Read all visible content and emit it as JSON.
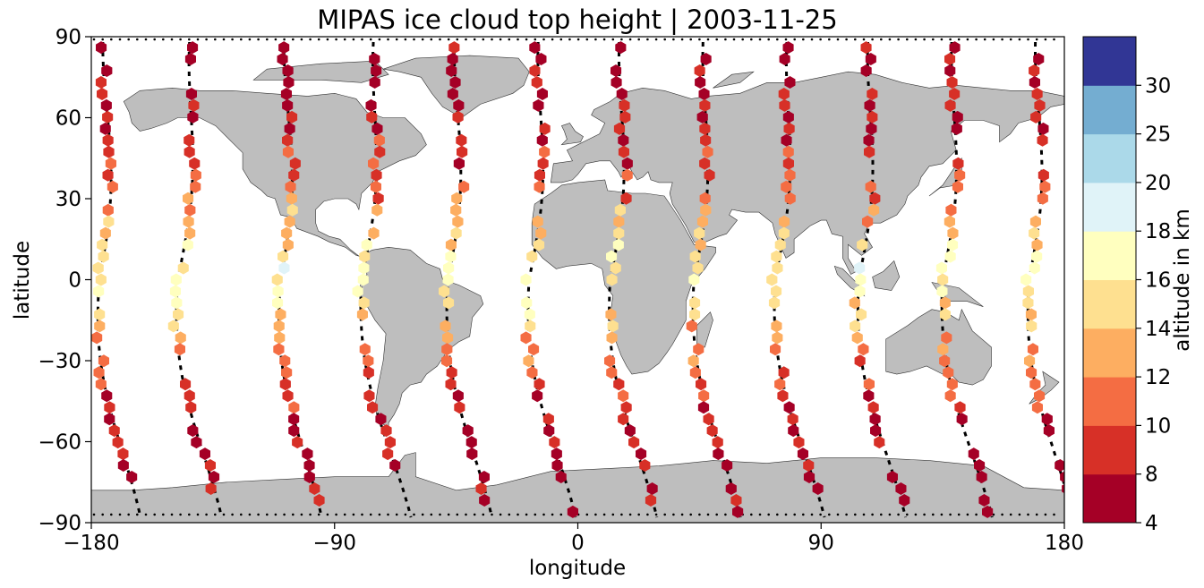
{
  "chart_data": {
    "type": "scatter",
    "title": "MIPAS ice cloud top height | 2003-11-25",
    "xlabel": "longitude",
    "ylabel": "latitude",
    "xlim": [
      -180,
      180
    ],
    "ylim": [
      -90,
      90
    ],
    "xticks": [
      -180,
      -90,
      0,
      90,
      180
    ],
    "yticks": [
      -90,
      -60,
      -30,
      0,
      30,
      60,
      90
    ],
    "xtick_labels": [
      "−180",
      "−90",
      "0",
      "90",
      "180"
    ],
    "ytick_labels": [
      "−90",
      "−60",
      "−30",
      "0",
      "30",
      "60",
      "90"
    ],
    "grid": false,
    "colorbar": {
      "label": "altitude in km",
      "boundaries": [
        4,
        8,
        10,
        12,
        14,
        16,
        18,
        20,
        25,
        30
      ],
      "tick_labels": [
        "4",
        "8",
        "10",
        "12",
        "14",
        "16",
        "18",
        "20",
        "25",
        "30"
      ],
      "colors": [
        "#a50026",
        "#d73027",
        "#f46d43",
        "#fdae61",
        "#fee090",
        "#ffffbf",
        "#e0f3f8",
        "#abd9e9",
        "#74add1",
        "#313695"
      ]
    },
    "land_color": "#bebebe",
    "orbits": [
      {
        "lon_north": -173,
        "lon_south": -165,
        "lon_eq": -177,
        "cloud_lat": [
          86,
          -78
        ]
      },
      {
        "lon_north": -141,
        "lon_south": -135,
        "lon_eq": -148,
        "cloud_lat": [
          86,
          -80
        ]
      },
      {
        "lon_north": -106,
        "lon_south": -98,
        "lon_eq": -110,
        "cloud_lat": [
          86,
          -84
        ]
      },
      {
        "lon_north": -73,
        "lon_south": -65,
        "lon_eq": -80,
        "cloud_lat": [
          86,
          -72
        ]
      },
      {
        "lon_north": -43,
        "lon_south": -35,
        "lon_eq": -48,
        "cloud_lat": [
          86,
          -83
        ]
      },
      {
        "lon_north": -12,
        "lon_south": -4,
        "lon_eq": -18,
        "cloud_lat": [
          86,
          -86
        ]
      },
      {
        "lon_north": 18,
        "lon_south": 26,
        "lon_eq": 12,
        "cloud_lat": [
          86,
          -85
        ]
      },
      {
        "lon_north": 49,
        "lon_south": 57,
        "lon_eq": 43,
        "cloud_lat": [
          86,
          -86
        ]
      },
      {
        "lon_north": 80,
        "lon_south": 88,
        "lon_eq": 73,
        "cloud_lat": [
          86,
          -84
        ]
      },
      {
        "lon_north": 110,
        "lon_south": 118,
        "lon_eq": 104,
        "cloud_lat": [
          86,
          -82
        ]
      },
      {
        "lon_north": 141,
        "lon_south": 150,
        "lon_eq": 135,
        "cloud_lat": [
          86,
          -86
        ]
      },
      {
        "lon_north": 172,
        "lon_south": 180,
        "lon_eq": 167,
        "cloud_lat": [
          86,
          -80
        ]
      }
    ],
    "altitude_profile": [
      {
        "lat": 90,
        "km": 7
      },
      {
        "lat": 70,
        "km": 7.5
      },
      {
        "lat": 55,
        "km": 8.5
      },
      {
        "lat": 40,
        "km": 9.5
      },
      {
        "lat": 28,
        "km": 12
      },
      {
        "lat": 15,
        "km": 14.5
      },
      {
        "lat": 5,
        "km": 16.5
      },
      {
        "lat": -5,
        "km": 16
      },
      {
        "lat": -15,
        "km": 14
      },
      {
        "lat": -28,
        "km": 11.5
      },
      {
        "lat": -42,
        "km": 9
      },
      {
        "lat": -60,
        "km": 7.5
      },
      {
        "lat": -90,
        "km": 7
      }
    ]
  }
}
